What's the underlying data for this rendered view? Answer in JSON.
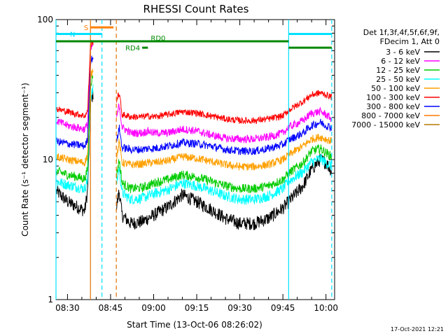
{
  "chart_data": {
    "type": "line",
    "title": "RHESSI Count Rates",
    "xlabel": "Start Time (13-Oct-06 08:26:02)",
    "ylabel": "Count Rate (s⁻¹ detector segment⁻¹)",
    "y_scale": "log",
    "ylim": [
      1,
      100
    ],
    "xlim": [
      "08:26",
      "10:03"
    ],
    "y_tick_labels": [
      "1",
      "10",
      "100"
    ],
    "x_tick_labels": [
      "08:30",
      "08:45",
      "09:00",
      "09:15",
      "09:30",
      "09:45",
      "10:00"
    ],
    "x_ticks": [
      {
        "label": "08:30",
        "t": "08:30"
      },
      {
        "label": "08:45",
        "t": "08:45"
      },
      {
        "label": "09:00",
        "t": "09:00"
      },
      {
        "label": "09:15",
        "t": "09:15"
      },
      {
        "label": "09:30",
        "t": "09:30"
      },
      {
        "label": "09:45",
        "t": "09:45"
      },
      {
        "label": "10:00",
        "t": "10:00"
      }
    ],
    "legend": {
      "placement": "right",
      "header": [
        "Det 1f,3f,4f,5f,6f,9f,",
        "FDecim 1, Att 0"
      ]
    },
    "time_points": [
      "08:26",
      "08:30",
      "08:36",
      "08:37",
      "08:38",
      "08:39",
      "08:41",
      "08:43",
      "08:45",
      "08:47",
      "08:48",
      "08:49",
      "08:52",
      "08:56",
      "08:58",
      "09:00",
      "09:05",
      "09:10",
      "09:15",
      "09:20",
      "09:25",
      "09:30",
      "09:35",
      "09:40",
      "09:45",
      "09:47",
      "09:52",
      "09:55",
      "09:58",
      "10:00",
      "10:02"
    ],
    "series": [
      {
        "name": "3 - 6 keV",
        "color": "#000000",
        "noise": 0.05,
        "values": [
          6.0,
          5.0,
          4.3,
          6.0,
          25.0,
          30.0,
          null,
          null,
          null,
          4.5,
          6.0,
          4.0,
          3.5,
          3.6,
          3.8,
          4.0,
          4.6,
          5.6,
          5.0,
          4.4,
          3.8,
          3.5,
          3.5,
          3.8,
          4.5,
          5.0,
          6.5,
          8.5,
          10.0,
          9.5,
          8.3
        ]
      },
      {
        "name": "6 - 12 keV",
        "color": "#ff00ff",
        "noise": 0.03,
        "values": [
          19.0,
          17.5,
          16.5,
          18.0,
          60.0,
          68.0,
          null,
          null,
          null,
          19.0,
          25.0,
          17.0,
          15.5,
          15.5,
          16.0,
          15.5,
          15.5,
          16.5,
          16.0,
          15.0,
          14.2,
          14.0,
          14.0,
          14.5,
          15.5,
          17.0,
          19.0,
          21.5,
          22.0,
          21.0,
          19.5
        ]
      },
      {
        "name": "12 - 25 keV",
        "color": "#00cc00",
        "noise": 0.035,
        "values": [
          8.3,
          7.8,
          7.3,
          8.5,
          35.0,
          40.0,
          null,
          null,
          null,
          7.6,
          10.0,
          6.8,
          6.2,
          6.3,
          6.5,
          6.8,
          7.2,
          7.8,
          7.5,
          7.0,
          6.5,
          6.2,
          6.2,
          6.5,
          7.2,
          8.0,
          9.5,
          11.5,
          12.0,
          11.2,
          10.5
        ]
      },
      {
        "name": "25 - 50 keV",
        "color": "#00ffff",
        "noise": 0.04,
        "values": [
          7.0,
          6.6,
          6.2,
          7.2,
          28.0,
          32.0,
          null,
          null,
          null,
          6.6,
          8.8,
          5.8,
          5.2,
          5.3,
          5.5,
          5.7,
          6.1,
          6.8,
          6.5,
          6.0,
          5.5,
          5.2,
          5.2,
          5.5,
          6.2,
          7.0,
          8.2,
          9.6,
          10.2,
          9.5,
          9.0
        ]
      },
      {
        "name": "50 - 100 keV",
        "color": "#ffa000",
        "noise": 0.03,
        "values": [
          10.5,
          10.0,
          9.5,
          10.8,
          40.0,
          45.0,
          null,
          null,
          null,
          10.0,
          13.5,
          9.5,
          9.2,
          9.3,
          9.5,
          9.5,
          9.8,
          10.5,
          10.2,
          9.7,
          9.2,
          8.9,
          8.9,
          9.2,
          10.0,
          10.8,
          12.5,
          14.0,
          14.5,
          14.0,
          13.5
        ]
      },
      {
        "name": "100 - 300 keV",
        "color": "#ff0000",
        "noise": 0.025,
        "values": [
          23.0,
          22.0,
          20.5,
          22.0,
          66.0,
          70.0,
          null,
          null,
          null,
          26.0,
          30.0,
          21.0,
          20.2,
          20.2,
          20.5,
          20.2,
          21.0,
          22.0,
          21.5,
          20.5,
          19.5,
          19.0,
          19.0,
          19.5,
          20.5,
          22.5,
          26.0,
          29.0,
          30.0,
          29.0,
          28.0
        ]
      },
      {
        "name": "300 - 800 keV",
        "color": "#0000ff",
        "noise": 0.03,
        "values": [
          13.5,
          13.0,
          12.5,
          13.8,
          50.0,
          55.0,
          null,
          null,
          null,
          13.0,
          17.0,
          12.2,
          11.8,
          11.8,
          12.0,
          12.0,
          12.5,
          13.2,
          13.0,
          12.5,
          11.8,
          11.5,
          11.5,
          12.0,
          12.8,
          13.8,
          15.5,
          17.5,
          18.5,
          17.5,
          17.0
        ]
      },
      {
        "name": "800 - 7000 keV",
        "color": "#ff7800",
        "noise": 0.03,
        "values": [
          null
        ]
      },
      {
        "name": "7000 - 15000 keV",
        "color": "#b87800",
        "noise": 0.03,
        "values": [
          null
        ]
      }
    ],
    "markers": [
      {
        "t": "08:38",
        "color": "#e07000",
        "style": "solid"
      },
      {
        "t": "08:47",
        "color": "#e07000",
        "style": "dashed"
      },
      {
        "t": "08:42",
        "color": "#00e0ff",
        "style": "dashed"
      },
      {
        "t": "08:26",
        "color": "#00e0ff",
        "style": "solid"
      },
      {
        "t": "09:47",
        "color": "#00e0ff",
        "style": "solid"
      },
      {
        "t": "10:02",
        "color": "#00e0ff",
        "style": "dashed"
      }
    ],
    "annotation_bars": [
      {
        "label": "S",
        "color": "#ff7f00",
        "t0": "08:38",
        "t1": "08:46",
        "y": 88
      },
      {
        "label": "N",
        "color": "#00e0ff",
        "t0": "08:26",
        "t1": "08:42",
        "y": 79
      },
      {
        "label": "",
        "color": "#00e0ff",
        "t0": "09:47",
        "t1": "10:02",
        "y": 79
      },
      {
        "label": "RD0",
        "color": "#008800",
        "t0": "08:26",
        "t1": "09:47",
        "y": 70
      },
      {
        "label": "RD4",
        "color": "#008800",
        "t0": "08:56",
        "t1": "08:58",
        "y": 63
      },
      {
        "label": "",
        "color": "#008800",
        "t0": "09:47",
        "t1": "10:02",
        "y": 63
      }
    ]
  },
  "footer": {
    "timestamp": "17-Oct-2021 12:21"
  }
}
